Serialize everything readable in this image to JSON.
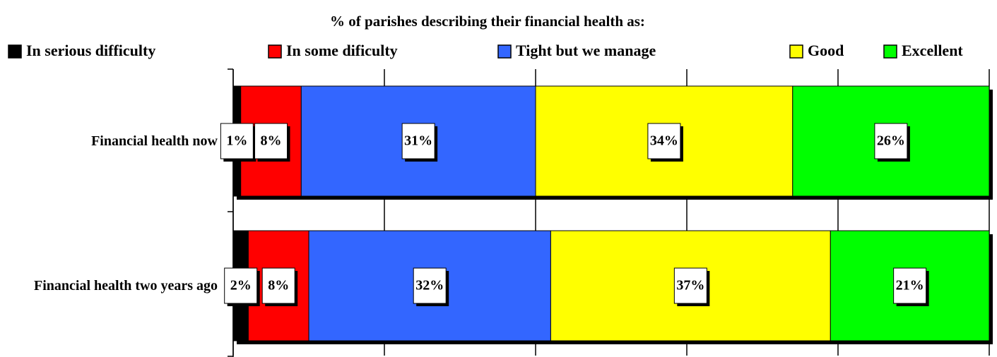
{
  "chart_data": {
    "type": "stacked_bar_horizontal",
    "title": "% of parishes describing their financial health as:",
    "categories": [
      "Financial health now",
      "Financial health two years ago"
    ],
    "series": [
      {
        "name": "In serious difficulty",
        "color": "#000000",
        "values": [
          1,
          2
        ],
        "value_labels": [
          "1%",
          "2%"
        ]
      },
      {
        "name": "In some dificulty",
        "color": "#ff0000",
        "values": [
          8,
          8
        ],
        "value_labels": [
          "8%",
          "8%"
        ]
      },
      {
        "name": "Tight but we manage",
        "color": "#3366ff",
        "values": [
          31,
          32
        ],
        "value_labels": [
          "31%",
          "32%"
        ]
      },
      {
        "name": "Good",
        "color": "#ffff00",
        "values": [
          34,
          37
        ],
        "value_labels": [
          "34%",
          "37%"
        ]
      },
      {
        "name": "Excellent",
        "color": "#00ff00",
        "values": [
          26,
          21
        ],
        "value_labels": [
          "26%",
          "21%"
        ]
      }
    ],
    "xlim": [
      0,
      100
    ],
    "xticks": [
      0,
      20,
      40,
      60,
      80,
      100
    ],
    "grid": true,
    "legend": "top"
  }
}
